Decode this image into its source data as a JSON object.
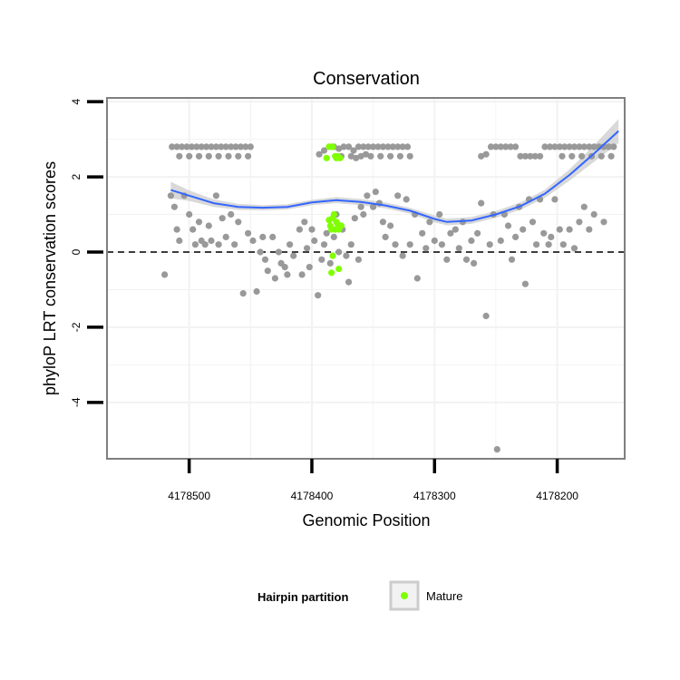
{
  "chart_data": {
    "type": "scatter",
    "title": "Conservation",
    "xlabel": "Genomic Position",
    "ylabel": "phyloP LRT conservation scores",
    "x_reversed": true,
    "xlim": [
      4178145,
      4178567
    ],
    "ylim": [
      -5.5,
      4.1
    ],
    "x_ticks": [
      4178500,
      4178400,
      4178300,
      4178200
    ],
    "x_tick_labels": [
      "4178500",
      "4178400",
      "4178300",
      "4178200"
    ],
    "y_ticks": [
      4,
      2,
      0,
      -2,
      -4
    ],
    "y_tick_labels": [
      "4",
      "2",
      "0",
      "-2",
      "-4"
    ],
    "grid": true,
    "reference_line": {
      "y": 0,
      "style": "dashed"
    },
    "colors": {
      "background_points": "#999999",
      "mature": "#80ff00",
      "smooth_line": "#3366ff",
      "ribbon": "#cccccc",
      "grid": "#f2f2f2",
      "panel_border": "#7f7f7f"
    },
    "legend": {
      "title": "Hairpin partition",
      "position": "bottom",
      "entries": [
        {
          "label": "Mature",
          "color": "#80ff00"
        }
      ]
    },
    "series": [
      {
        "role": "background",
        "color": "#999999",
        "points": [
          [
            4178514,
            2.8
          ],
          [
            4178510,
            2.8
          ],
          [
            4178506,
            2.8
          ],
          [
            4178502,
            2.8
          ],
          [
            4178498,
            2.8
          ],
          [
            4178494,
            2.8
          ],
          [
            4178490,
            2.8
          ],
          [
            4178486,
            2.8
          ],
          [
            4178482,
            2.8
          ],
          [
            4178478,
            2.8
          ],
          [
            4178474,
            2.8
          ],
          [
            4178470,
            2.8
          ],
          [
            4178466,
            2.8
          ],
          [
            4178462,
            2.8
          ],
          [
            4178458,
            2.8
          ],
          [
            4178454,
            2.8
          ],
          [
            4178450,
            2.8
          ],
          [
            4178508,
            2.55
          ],
          [
            4178500,
            2.55
          ],
          [
            4178492,
            2.55
          ],
          [
            4178484,
            2.55
          ],
          [
            4178476,
            2.55
          ],
          [
            4178468,
            2.55
          ],
          [
            4178460,
            2.55
          ],
          [
            4178452,
            2.55
          ],
          [
            4178394,
            2.6
          ],
          [
            4178390,
            2.7
          ],
          [
            4178382,
            2.8
          ],
          [
            4178378,
            2.75
          ],
          [
            4178374,
            2.8
          ],
          [
            4178370,
            2.8
          ],
          [
            4178366,
            2.7
          ],
          [
            4178362,
            2.8
          ],
          [
            4178358,
            2.8
          ],
          [
            4178354,
            2.8
          ],
          [
            4178350,
            2.8
          ],
          [
            4178346,
            2.8
          ],
          [
            4178342,
            2.8
          ],
          [
            4178338,
            2.8
          ],
          [
            4178334,
            2.8
          ],
          [
            4178330,
            2.8
          ],
          [
            4178326,
            2.8
          ],
          [
            4178322,
            2.8
          ],
          [
            4178376,
            2.55
          ],
          [
            4178368,
            2.55
          ],
          [
            4178360,
            2.55
          ],
          [
            4178352,
            2.55
          ],
          [
            4178344,
            2.55
          ],
          [
            4178336,
            2.55
          ],
          [
            4178328,
            2.55
          ],
          [
            4178320,
            2.55
          ],
          [
            4178364,
            2.5
          ],
          [
            4178356,
            2.6
          ],
          [
            4178262,
            2.55
          ],
          [
            4178258,
            2.6
          ],
          [
            4178254,
            2.8
          ],
          [
            4178250,
            2.8
          ],
          [
            4178246,
            2.8
          ],
          [
            4178242,
            2.8
          ],
          [
            4178238,
            2.8
          ],
          [
            4178234,
            2.8
          ],
          [
            4178230,
            2.55
          ],
          [
            4178226,
            2.55
          ],
          [
            4178222,
            2.55
          ],
          [
            4178218,
            2.55
          ],
          [
            4178214,
            2.55
          ],
          [
            4178210,
            2.8
          ],
          [
            4178206,
            2.8
          ],
          [
            4178202,
            2.8
          ],
          [
            4178198,
            2.8
          ],
          [
            4178194,
            2.8
          ],
          [
            4178190,
            2.8
          ],
          [
            4178186,
            2.8
          ],
          [
            4178182,
            2.8
          ],
          [
            4178178,
            2.8
          ],
          [
            4178174,
            2.8
          ],
          [
            4178170,
            2.8
          ],
          [
            4178166,
            2.8
          ],
          [
            4178162,
            2.8
          ],
          [
            4178158,
            2.8
          ],
          [
            4178154,
            2.8
          ],
          [
            4178196,
            2.55
          ],
          [
            4178188,
            2.55
          ],
          [
            4178180,
            2.55
          ],
          [
            4178172,
            2.55
          ],
          [
            4178164,
            2.55
          ],
          [
            4178156,
            2.55
          ],
          [
            4178515,
            1.5
          ],
          [
            4178512,
            1.2
          ],
          [
            4178510,
            0.6
          ],
          [
            4178508,
            0.3
          ],
          [
            4178504,
            1.5
          ],
          [
            4178500,
            1.0
          ],
          [
            4178497,
            0.6
          ],
          [
            4178495,
            0.2
          ],
          [
            4178492,
            0.8
          ],
          [
            4178490,
            0.3
          ],
          [
            4178487,
            0.2
          ],
          [
            4178484,
            0.7
          ],
          [
            4178482,
            0.3
          ],
          [
            4178478,
            1.5
          ],
          [
            4178476,
            0.2
          ],
          [
            4178473,
            0.9
          ],
          [
            4178470,
            0.4
          ],
          [
            4178466,
            1.0
          ],
          [
            4178463,
            0.2
          ],
          [
            4178460,
            0.8
          ],
          [
            4178456,
            -1.1
          ],
          [
            4178452,
            0.5
          ],
          [
            4178448,
            0.3
          ],
          [
            4178445,
            -1.05
          ],
          [
            4178442,
            0.0
          ],
          [
            4178440,
            0.4
          ],
          [
            4178438,
            -0.2
          ],
          [
            4178436,
            -0.5
          ],
          [
            4178432,
            0.4
          ],
          [
            4178430,
            -0.7
          ],
          [
            4178427,
            0.0
          ],
          [
            4178425,
            -0.3
          ],
          [
            4178422,
            -0.4
          ],
          [
            4178420,
            -0.6
          ],
          [
            4178418,
            0.2
          ],
          [
            4178415,
            -0.1
          ],
          [
            4178410,
            0.6
          ],
          [
            4178406,
            0.8
          ],
          [
            4178404,
            0.1
          ],
          [
            4178400,
            0.6
          ],
          [
            4178398,
            0.3
          ],
          [
            4178395,
            -1.15
          ],
          [
            4178392,
            -0.2
          ],
          [
            4178390,
            0.2
          ],
          [
            4178388,
            0.5
          ],
          [
            4178385,
            -0.3
          ],
          [
            4178382,
            0.4
          ],
          [
            4178380,
            1.0
          ],
          [
            4178378,
            0.0
          ],
          [
            4178375,
            0.6
          ],
          [
            4178372,
            -0.1
          ],
          [
            4178370,
            -0.8
          ],
          [
            4178368,
            0.2
          ],
          [
            4178365,
            0.9
          ],
          [
            4178362,
            -0.2
          ],
          [
            4178360,
            1.2
          ],
          [
            4178358,
            1.0
          ],
          [
            4178355,
            1.5
          ],
          [
            4178350,
            1.2
          ],
          [
            4178348,
            1.6
          ],
          [
            4178345,
            1.3
          ],
          [
            4178342,
            0.8
          ],
          [
            4178340,
            0.4
          ],
          [
            4178336,
            0.7
          ],
          [
            4178332,
            0.2
          ],
          [
            4178330,
            1.5
          ],
          [
            4178326,
            -0.1
          ],
          [
            4178323,
            1.4
          ],
          [
            4178320,
            0.2
          ],
          [
            4178316,
            1.0
          ],
          [
            4178314,
            -0.7
          ],
          [
            4178310,
            0.5
          ],
          [
            4178307,
            0.1
          ],
          [
            4178304,
            0.8
          ],
          [
            4178300,
            0.3
          ],
          [
            4178296,
            1.0
          ],
          [
            4178294,
            0.2
          ],
          [
            4178290,
            -0.2
          ],
          [
            4178287,
            0.5
          ],
          [
            4178283,
            0.6
          ],
          [
            4178280,
            0.1
          ],
          [
            4178277,
            0.8
          ],
          [
            4178274,
            -0.2
          ],
          [
            4178270,
            0.3
          ],
          [
            4178268,
            -0.3
          ],
          [
            4178265,
            0.5
          ],
          [
            4178262,
            1.3
          ],
          [
            4178258,
            -1.7
          ],
          [
            4178255,
            0.2
          ],
          [
            4178252,
            1.0
          ],
          [
            4178249,
            -5.25
          ],
          [
            4178246,
            0.3
          ],
          [
            4178243,
            1.0
          ],
          [
            4178240,
            0.7
          ],
          [
            4178237,
            -0.2
          ],
          [
            4178234,
            0.4
          ],
          [
            4178231,
            1.2
          ],
          [
            4178228,
            0.6
          ],
          [
            4178226,
            -0.85
          ],
          [
            4178223,
            1.4
          ],
          [
            4178220,
            0.8
          ],
          [
            4178217,
            0.2
          ],
          [
            4178214,
            1.4
          ],
          [
            4178211,
            0.5
          ],
          [
            4178207,
            0.2
          ],
          [
            4178205,
            0.4
          ],
          [
            4178202,
            1.4
          ],
          [
            4178198,
            0.6
          ],
          [
            4178195,
            0.2
          ],
          [
            4178190,
            0.6
          ],
          [
            4178186,
            0.1
          ],
          [
            4178182,
            0.8
          ],
          [
            4178178,
            1.2
          ],
          [
            4178174,
            0.6
          ],
          [
            4178170,
            1.0
          ],
          [
            4178162,
            0.8
          ],
          [
            4178520,
            -0.6
          ],
          [
            4178408,
            -0.6
          ],
          [
            4178402,
            -0.4
          ]
        ]
      },
      {
        "role": "mature",
        "name": "Mature",
        "color": "#80ff00",
        "points": [
          [
            4178380,
            2.5
          ],
          [
            4178377,
            2.5
          ],
          [
            4178388,
            2.5
          ],
          [
            4178386,
            2.8
          ],
          [
            4178384,
            2.8
          ],
          [
            4178383,
            2.8
          ],
          [
            4178381,
            2.55
          ],
          [
            4178379,
            2.55
          ],
          [
            4178382,
            1.0
          ],
          [
            4178380,
            0.8
          ],
          [
            4178378,
            0.6
          ],
          [
            4178385,
            0.7
          ],
          [
            4178383,
            0.9
          ],
          [
            4178381,
            0.6
          ],
          [
            4178384,
            0.6
          ],
          [
            4178379,
            0.75
          ],
          [
            4178386,
            0.85
          ],
          [
            4178376,
            0.7
          ],
          [
            4178383,
            -0.1
          ],
          [
            4178384,
            -0.55
          ],
          [
            4178378,
            -0.45
          ]
        ]
      }
    ],
    "smooth": [
      [
        4178515,
        1.65
      ],
      [
        4178500,
        1.5
      ],
      [
        4178480,
        1.3
      ],
      [
        4178460,
        1.2
      ],
      [
        4178440,
        1.18
      ],
      [
        4178420,
        1.2
      ],
      [
        4178400,
        1.32
      ],
      [
        4178380,
        1.38
      ],
      [
        4178360,
        1.33
      ],
      [
        4178340,
        1.24
      ],
      [
        4178320,
        1.1
      ],
      [
        4178300,
        0.88
      ],
      [
        4178290,
        0.8
      ],
      [
        4178270,
        0.84
      ],
      [
        4178250,
        1.0
      ],
      [
        4178230,
        1.22
      ],
      [
        4178210,
        1.55
      ],
      [
        4178190,
        2.05
      ],
      [
        4178170,
        2.62
      ],
      [
        4178150,
        3.22
      ]
    ],
    "ribbon_halfwidth": [
      0.22,
      0.14,
      0.1,
      0.08,
      0.07,
      0.07,
      0.07,
      0.08,
      0.08,
      0.08,
      0.08,
      0.09,
      0.09,
      0.09,
      0.09,
      0.1,
      0.11,
      0.15,
      0.22,
      0.32
    ]
  }
}
